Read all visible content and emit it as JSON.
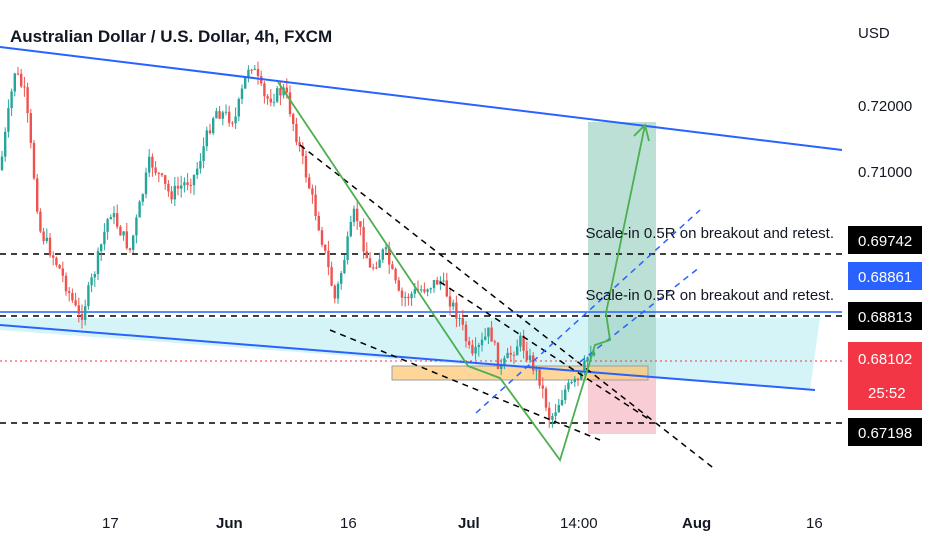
{
  "chart_data": {
    "type": "candlestick",
    "title": "Australian Dollar / U.S. Dollar, 4h, FXCM",
    "currency_label": "USD",
    "y_ticks": [
      "0.72000",
      "0.71000"
    ],
    "x_ticks": [
      "17",
      "Jun",
      "16",
      "Jul",
      "14:00",
      "Aug",
      "16"
    ],
    "price_badges": [
      {
        "name": "resistance-level",
        "text": "0.69742",
        "price": 0.69742,
        "color": "#000000"
      },
      {
        "name": "blue-line-price",
        "text": "0.68861",
        "price": 0.68861,
        "color": "#2962ff"
      },
      {
        "name": "support-level",
        "text": "0.68813",
        "price": 0.68813,
        "color": "#000000"
      },
      {
        "name": "last-price",
        "text": "0.68102",
        "price": 0.68102,
        "color": "#f23645"
      },
      {
        "name": "bar-countdown",
        "text": "25:52",
        "color": "#f23645"
      },
      {
        "name": "low-level",
        "text": "0.67198",
        "price": 0.67198,
        "color": "#000000"
      }
    ],
    "annotations": [
      {
        "text": "Scale-in 0.5R on breakout and retest.",
        "price": 0.6974
      },
      {
        "text": "Scale-in 0.5R on breakout and retest.",
        "price": 0.688
      }
    ],
    "horizontal_levels": [
      0.69742,
      0.68861,
      0.68813,
      0.67198
    ],
    "last_price": 0.68102,
    "colors": {
      "up": "#26a69a",
      "down": "#ef5350",
      "channel": "#2962ff",
      "trend": "#4caf50",
      "profit_zone": "#a5d6c8",
      "loss_zone": "#f8c8cf",
      "demand_zone": "#ffcc80",
      "channel_fill": "#b2ebf2"
    }
  }
}
